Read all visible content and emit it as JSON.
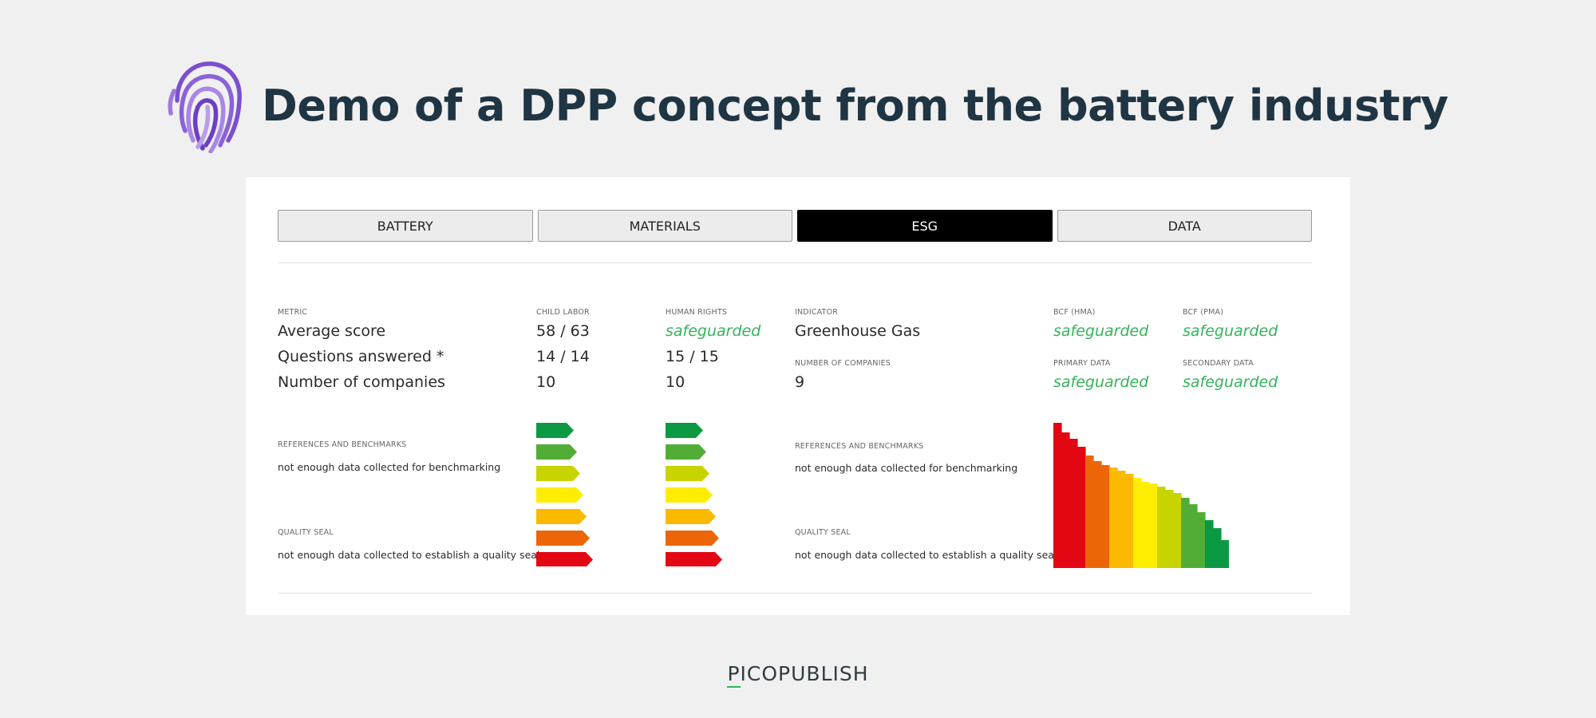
{
  "header": {
    "title": "Demo of a DPP concept from the battery industry",
    "logo": "fingerprint-icon",
    "logo_color": "#7b4fd0"
  },
  "tabs": [
    {
      "label": "BATTERY",
      "active": false
    },
    {
      "label": "MATERIALS",
      "active": false
    },
    {
      "label": "ESG",
      "active": true
    },
    {
      "label": "DATA",
      "active": false
    }
  ],
  "left": {
    "metric_label": "METRIC",
    "rows": [
      "Average score",
      "Questions answered *",
      "Number of companies"
    ],
    "child_labor": {
      "label": "CHILD LABOR",
      "values": [
        "58 / 63",
        "14 / 14",
        "10"
      ]
    },
    "human_rights": {
      "label": "HUMAN RIGHTS",
      "values": [
        "safeguarded",
        "15 / 15",
        "10"
      ]
    },
    "references_label": "REFERENCES AND BENCHMARKS",
    "references_text": "not enough data collected for benchmarking",
    "quality_label": "QUALITY SEAL",
    "quality_text": "not enough data collected to establish a quality seal"
  },
  "right": {
    "indicator_label": "INDICATOR",
    "indicator_value": "Greenhouse Gas",
    "companies_label": "NUMBER OF COMPANIES",
    "companies_value": "9",
    "bcf_hma": {
      "label": "BCF (HMA)",
      "value": "safeguarded"
    },
    "bcf_pma": {
      "label": "BCF (PMA)",
      "value": "safeguarded"
    },
    "primary": {
      "label": "PRIMARY DATA",
      "value": "safeguarded"
    },
    "secondary": {
      "label": "SECONDARY DATA",
      "value": "safeguarded"
    },
    "references_label": "REFERENCES AND BENCHMARKS",
    "references_text": "not enough data collected for benchmarking",
    "quality_label": "QUALITY SEAL",
    "quality_text": "not enough data collected to establish a quality seal"
  },
  "rating_colors": [
    "#0b9a43",
    "#52ad36",
    "#c8d400",
    "#ffed00",
    "#fbba00",
    "#ec6608",
    "#e30613"
  ],
  "staircase_colors": [
    "#e30613",
    "#ec6608",
    "#fbba00",
    "#ffed00",
    "#c8d400",
    "#52ad36",
    "#0b9a43"
  ],
  "footer": {
    "brand": "PICOPUBLISH",
    "accent": "#36b35c"
  }
}
